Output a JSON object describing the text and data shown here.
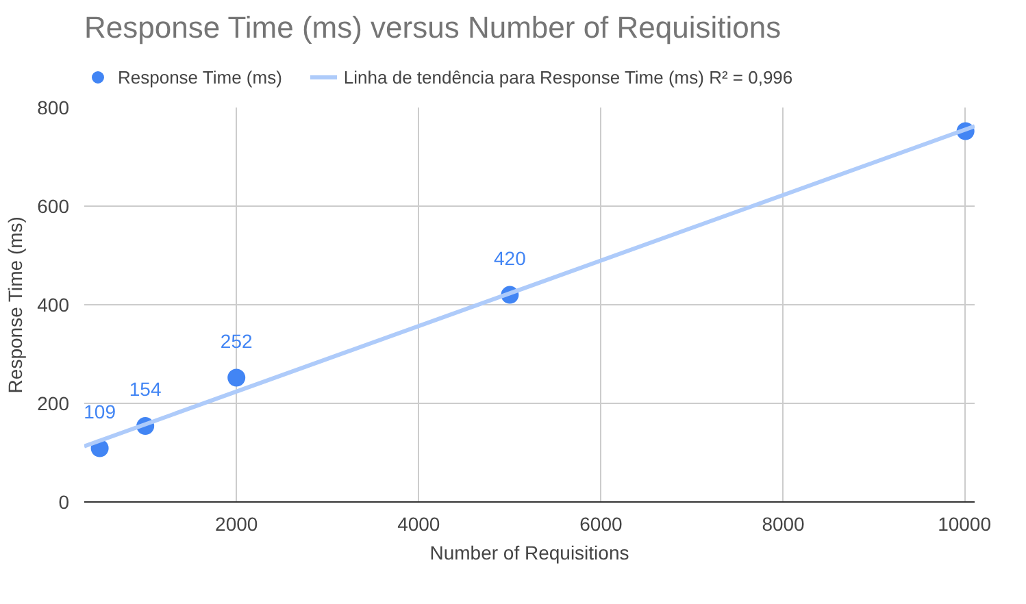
{
  "chart_data": {
    "type": "scatter",
    "title": "Response Time (ms) versus Number of Requisitions",
    "xlabel": "Number of Requisitions",
    "ylabel": "Response Time (ms)",
    "series": [
      {
        "name": "Response Time (ms)",
        "color": "#4285f4",
        "marker": "circle",
        "x": [
          500,
          1000,
          2000,
          5000,
          10000
        ],
        "values": [
          109,
          154,
          252,
          420,
          752
        ],
        "value_labels": [
          "109",
          "154",
          "252",
          "420",
          null
        ]
      },
      {
        "name": "Linha de tendência para Response Time (ms) R² = 0,996",
        "type": "line",
        "color": "#aecbfa",
        "x": [
          330,
          10100
        ],
        "values": [
          113,
          762
        ]
      }
    ],
    "xlim": [
      330,
      10100
    ],
    "ylim": [
      0,
      800
    ],
    "xticks": [
      2000,
      4000,
      6000,
      8000,
      10000
    ],
    "yticks": [
      0,
      200,
      400,
      600,
      800
    ],
    "grid": true,
    "legend": "top left"
  }
}
